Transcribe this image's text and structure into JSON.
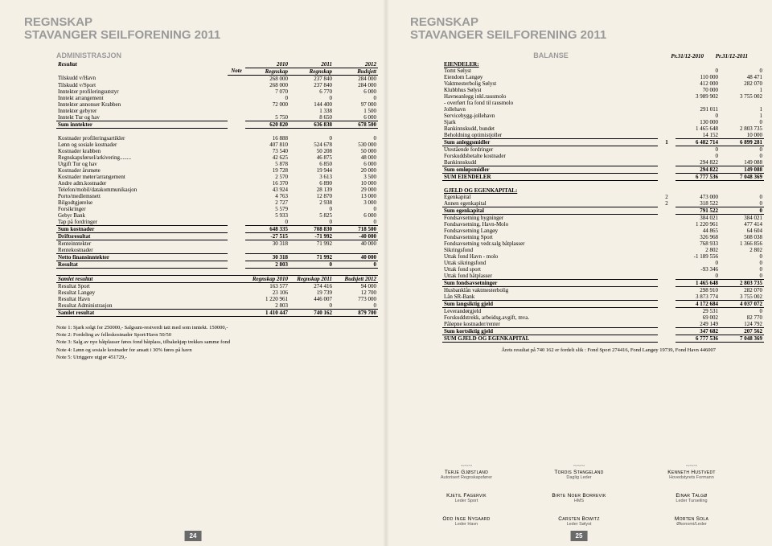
{
  "doc": {
    "title_line1": "REGNSKAP",
    "title_line2": "STAVANGER SEILFORENING 2011",
    "page_left": "24",
    "page_right": "25"
  },
  "admin": {
    "header": "ADMINISTRASJON",
    "cols": {
      "result": "Resultat",
      "note": "Note",
      "c2010": "2010",
      "c2010b": "Regnskap",
      "c2011": "2011",
      "c2011b": "Regnskap",
      "c2012": "2012",
      "c2012b": "Budsjett"
    },
    "income": [
      {
        "label": "Tilskudd v/Havn",
        "v": [
          "268 000",
          "237 840",
          "284 000"
        ]
      },
      {
        "label": "Tilskudd v/Sport",
        "v": [
          "268 000",
          "237 840",
          "284 000"
        ]
      },
      {
        "label": "Inntekter profileringsutstyr",
        "v": [
          "7 070",
          "6 770",
          "6 000"
        ]
      },
      {
        "label": "Inntekt arrangement",
        "v": [
          "0",
          "0",
          "0"
        ]
      },
      {
        "label": "Inntekter annonser Krabben",
        "v": [
          "72 000",
          "144 400",
          "97 000"
        ]
      },
      {
        "label": "Inntekter gebyrer",
        "v": [
          "",
          "1 338",
          "1 500"
        ]
      },
      {
        "label": "Inntekt Tur og hav",
        "v": [
          "5 750",
          "8 650",
          "6 000"
        ]
      }
    ],
    "sum_income": {
      "label": "Sum inntekter",
      "v": [
        "620 820",
        "636 838",
        "678 500"
      ]
    },
    "costs": [
      {
        "label": "Kostnader profileringsartikler",
        "v": [
          "16 888",
          "0",
          "0"
        ]
      },
      {
        "label": "Lønn og sosiale kostnader",
        "v": [
          "407 810",
          "524 678",
          "530 000"
        ]
      },
      {
        "label": "Kostnader krabben",
        "v": [
          "73 540",
          "50 208",
          "50 000"
        ]
      },
      {
        "label": "Regnskapsførsel/arkivering........",
        "v": [
          "42 625",
          "46 875",
          "48 000"
        ]
      },
      {
        "label": "Utgift Tur og hav",
        "v": [
          "5 878",
          "6 850",
          "6 000"
        ]
      },
      {
        "label": "Kostnader årsmøte",
        "v": [
          "19 728",
          "19 944",
          "20 000"
        ]
      },
      {
        "label": "Kostnader møter/arrangement",
        "v": [
          "2 570",
          "3 613",
          "3 500"
        ]
      },
      {
        "label": "Andre adm.kostnader",
        "v": [
          "16 370",
          "6 890",
          "10 000"
        ]
      },
      {
        "label": "Telefon/mobil/datakommunikasjon",
        "v": [
          "43 924",
          "28 139",
          "29 000"
        ]
      },
      {
        "label": "Porto/medlemsnett",
        "v": [
          "4 763",
          "12 870",
          "13 000"
        ]
      },
      {
        "label": "Bilgodtgjørelse",
        "v": [
          "2 727",
          "2 938",
          "3 000"
        ]
      },
      {
        "label": "Forsikringer",
        "v": [
          "5 579",
          "0",
          "0"
        ]
      },
      {
        "label": "Gebyr Bank",
        "v": [
          "5 933",
          "5 825",
          "6 000"
        ]
      },
      {
        "label": "Tap på fordringer",
        "v": [
          "0",
          "0",
          "0"
        ]
      }
    ],
    "sum_costs": {
      "label": "Sum kostnader",
      "v": [
        "648 335",
        "708 830",
        "718 500"
      ]
    },
    "drift": {
      "label": "Driftsresultat",
      "v": [
        "-27 515",
        "-71 992",
        "-40 000"
      ]
    },
    "renteinn": {
      "label": "Renteinntekter",
      "v": [
        "30 318",
        "71 992",
        "40 000"
      ]
    },
    "rentekost": {
      "label": "Rentekostnader",
      "v": [
        "",
        "",
        ""
      ]
    },
    "nettofin": {
      "label": "Netto finansinntekter",
      "v": [
        "30 318",
        "71 992",
        "40 000"
      ]
    },
    "resultat": {
      "label": "Resultat",
      "v": [
        "2 803",
        "0",
        "0"
      ]
    }
  },
  "samlet": {
    "header": "Samlet resultat",
    "cols": [
      "Regnskap 2010",
      "Regnskap 2011",
      "Budsjett 2012"
    ],
    "rows": [
      {
        "label": "Resultat Sport",
        "v": [
          "163 577",
          "274 416",
          "94 000"
        ]
      },
      {
        "label": "Resultat Langøy",
        "v": [
          "23 106",
          "19 739",
          "12 700"
        ]
      },
      {
        "label": "Resultat Havn",
        "v": [
          "1 220 961",
          "446 007",
          "773 000"
        ]
      },
      {
        "label": "Resultat Administrasjon",
        "v": [
          "2 803",
          "0",
          "0"
        ]
      }
    ],
    "sum": {
      "label": "Samlet resultat",
      "v": [
        "1 410 447",
        "740 162",
        "879 700"
      ]
    }
  },
  "notes_block": [
    "Note 1:  Sjark solgt for 250000,- Salgsum-restverdi tatt med som inntekt.   150000,-",
    "Note 2:  Fordeling av felleskostnader Sport/Havn  50/50",
    "Note 3:  Salg av nye båtplasser føres fond båtplass, tilbakekjøp trekkes samme fond",
    "Note 4:  Lønn og sosiale kostnader for ansatt i 30% føres på havn",
    "Note 5:  Utriggere utgjør 451729,-"
  ],
  "balance": {
    "header": "BALANSE",
    "col1": "Pr.31/12-2010",
    "col2": "Pr.31/12-2011",
    "eiendeler_hdr": "EIENDELER:",
    "anlegg": [
      {
        "label": "Tomt Sølyst",
        "v": [
          "0",
          "0"
        ]
      },
      {
        "label": "Eiendom Langøy",
        "v": [
          "110 000",
          "48 471"
        ]
      },
      {
        "label": "Vaktmesterbolig Sølyst",
        "v": [
          "412 000",
          "282 070"
        ]
      },
      {
        "label": "Klubbhus Sølyst",
        "v": [
          "70 000",
          "1"
        ]
      },
      {
        "label": "Havneanlegg inkl.rausmolo",
        "v": [
          "3 989 902",
          "3 755 002"
        ]
      },
      {
        "label": "- overført fra fond til rausmolo",
        "v": [
          "",
          ""
        ]
      },
      {
        "label": "Jollehavn",
        "v": [
          "291 011",
          "1"
        ]
      },
      {
        "label": "Servicebygg-jollehavn",
        "v": [
          "0",
          "1"
        ]
      },
      {
        "label": "Sjark",
        "v": [
          "130 000",
          "0"
        ]
      },
      {
        "label": "Bankinnskudd, bundet",
        "v": [
          "1 465 648",
          "2 803 735"
        ]
      },
      {
        "label": "Beholdning optimistjoller",
        "v": [
          "14 152",
          "10 000"
        ]
      }
    ],
    "sum_anlegg": {
      "label": "Sum anleggsmidler",
      "note": "1",
      "v": [
        "6 482 714",
        "6 899 281"
      ]
    },
    "omlop": [
      {
        "label": "Utestående fordringer",
        "v": [
          "0",
          "0"
        ]
      },
      {
        "label": "Forskuddsbetalte kostnader",
        "v": [
          "0",
          "0"
        ]
      },
      {
        "label": "Bankinnskudd",
        "v": [
          "294 822",
          "149 088"
        ]
      }
    ],
    "sum_omlop": {
      "label": "Sum omløpsmidler",
      "v": [
        "294 822",
        "149 088"
      ]
    },
    "sum_eiendeler": {
      "label": "SUM EIENDELER",
      "v": [
        "6 777 536",
        "7 048 369"
      ]
    },
    "gjeld_hdr": "GJELD OG EGENKAPITAL:",
    "ek": [
      {
        "label": "Egenkapital",
        "note": "2",
        "v": [
          "473 000",
          "0"
        ]
      },
      {
        "label": "Annen egenkapital",
        "note": "2",
        "v": [
          "318 522",
          "0"
        ]
      }
    ],
    "sum_ek": {
      "label": "Sum egenkapital",
      "v": [
        "791 522",
        "0"
      ]
    },
    "fonds": [
      {
        "label": "Fondsavsetning bygninger",
        "v": [
          "384 021",
          "384 021"
        ]
      },
      {
        "label": "Fondsavsetning, Havn-Molo",
        "v": [
          "1 220 961",
          "477 414"
        ]
      },
      {
        "label": "Fondsavsetning Langøy",
        "v": [
          "44 865",
          "64 604"
        ]
      },
      {
        "label": "Fondsavsetning Sport",
        "v": [
          "326 968",
          "508 038"
        ]
      },
      {
        "label": "Fondsavsetning vedr.salg båtplasser",
        "v": [
          "768 933",
          "1 366 856"
        ]
      },
      {
        "label": "Sikringsfond",
        "v": [
          "2 802",
          "2 802"
        ]
      },
      {
        "label": "Uttak fond Havn - molo",
        "v": [
          "-1 189 556",
          "0"
        ]
      },
      {
        "label": "Uttak sikringsfond",
        "v": [
          "0",
          "0"
        ]
      },
      {
        "label": "Uttak fond sport",
        "v": [
          "-93 346",
          "0"
        ]
      },
      {
        "label": "Uttak fond båtplasser",
        "v": [
          "0",
          "0"
        ]
      }
    ],
    "sum_fonds": {
      "label": "Sum fondsavsetninger",
      "v": [
        "1 465 648",
        "2 803 735"
      ]
    },
    "lang": [
      {
        "label": "Husbanklån vaktmesterbolig",
        "v": [
          "298 910",
          "282 070"
        ]
      },
      {
        "label": "Lån SR-Bank",
        "v": [
          "3 873 774",
          "3 755 002"
        ]
      }
    ],
    "sum_lang": {
      "label": "Sum langsiktig gjeld",
      "v": [
        "4 172 684",
        "4 037 072"
      ]
    },
    "kort": [
      {
        "label": "Leverandørgjeld",
        "v": [
          "29 531",
          "0"
        ]
      },
      {
        "label": "Forskuddstrekk, arbeidsg.avgift, mva.",
        "v": [
          "69 002",
          "82 770"
        ]
      },
      {
        "label": "Påløpne kostnader/renter",
        "v": [
          "249 149",
          "124 792"
        ]
      }
    ],
    "sum_kort": {
      "label": "Sum kortsiktig gjeld",
      "v": [
        "347 682",
        "207 562"
      ]
    },
    "sum_gjeld_ek": {
      "label": "SUM GJELD OG EGENKAPITAL",
      "v": [
        "6 777 536",
        "7 048 369"
      ]
    },
    "ars_note": "Årets resultat på 740 162 er fordelt slik : Fond Sport 274416, Fond Langøy 19739, Fond Havn 446007"
  },
  "signatures": {
    "row1": [
      {
        "name": "Terje Gjøstland",
        "role": "Autorisert Regnskapsfører"
      },
      {
        "name": "Tordis Stangeland",
        "role": "Daglig Leder"
      },
      {
        "name": "Kenneth Hustvedt",
        "role": "Hovedstyrets Formann"
      }
    ],
    "row2": [
      {
        "name": "Kjetil Fagervik",
        "role": "Leder Sport"
      },
      {
        "name": "Birte Noer Borrevik",
        "role": "HMS"
      },
      {
        "name": "Einar Talgø",
        "role": "Leder Turseiling"
      }
    ],
    "row3": [
      {
        "name": "Odd Inge Nygaard",
        "role": "Leder Havn"
      },
      {
        "name": "Carsten Bowitz",
        "role": "Leder Sølyst"
      },
      {
        "name": "Morten Sola",
        "role": "Økonomi/Leder"
      }
    ]
  }
}
